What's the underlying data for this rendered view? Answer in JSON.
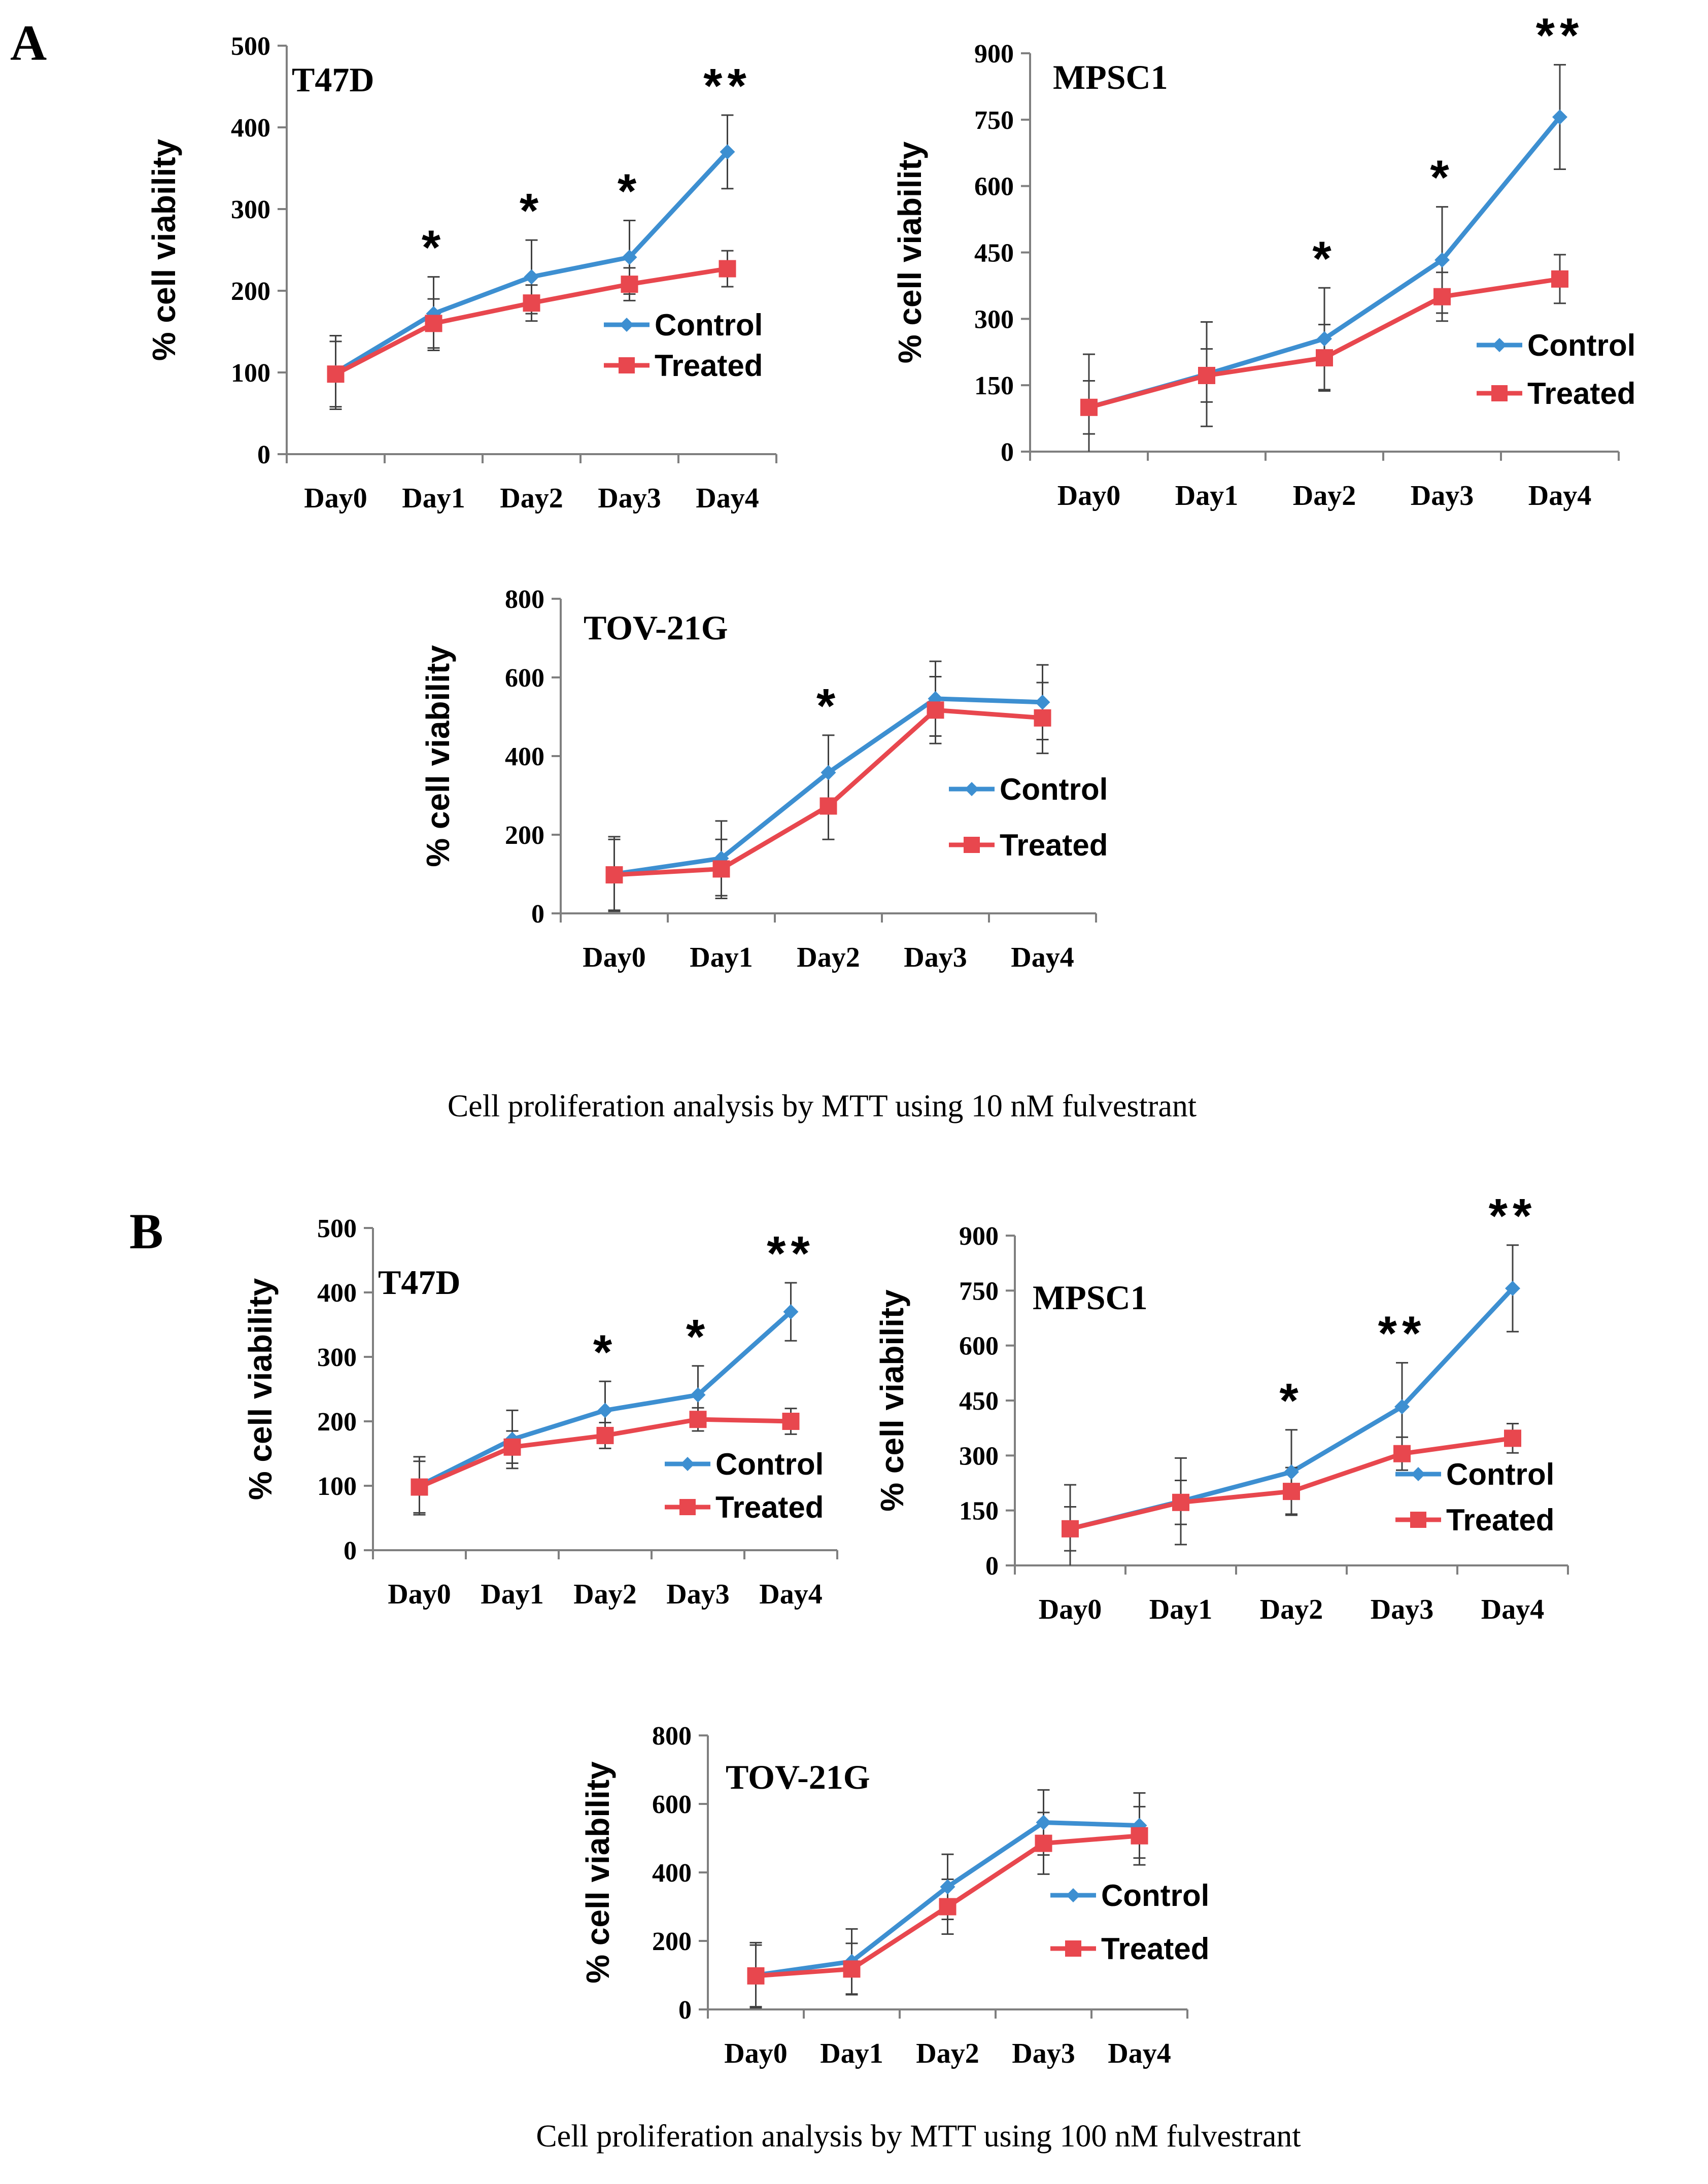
{
  "panels": [
    {
      "letter": "A",
      "caption": "Cell proliferation analysis by MTT using 10 nM fulvestrant"
    },
    {
      "letter": "B",
      "caption": "Cell proliferation analysis by MTT using 100 nM fulvestrant"
    }
  ],
  "colors": {
    "control": "#3d8fd1",
    "treated": "#e8474e",
    "axis": "#7f7f7f",
    "errorbar": "#404040"
  },
  "chart_data": [
    {
      "type": "line",
      "panel": "A",
      "title": "T47D",
      "ylabel": "% cell viability",
      "xlabel": "",
      "categories": [
        "Day0",
        "Day1",
        "Day2",
        "Day3",
        "Day4"
      ],
      "ylim": [
        0,
        500
      ],
      "yticks": [
        0,
        100,
        200,
        300,
        400,
        500
      ],
      "series": [
        {
          "name": "Control",
          "values": [
            100,
            172,
            217,
            241,
            370
          ],
          "errors": [
            45,
            45,
            45,
            45,
            45
          ]
        },
        {
          "name": "Treated",
          "values": [
            98,
            160,
            185,
            208,
            227
          ],
          "errors": [
            40,
            30,
            22,
            20,
            22
          ]
        }
      ],
      "significance": [
        "",
        "*",
        "*",
        "*",
        "**"
      ],
      "legend": "right"
    },
    {
      "type": "line",
      "panel": "A",
      "title": "MPSC1",
      "ylabel": "% cell viability",
      "xlabel": "",
      "categories": [
        "Day0",
        "Day1",
        "Day2",
        "Day3",
        "Day4"
      ],
      "ylim": [
        0,
        900
      ],
      "yticks": [
        0,
        150,
        300,
        450,
        600,
        750,
        900
      ],
      "series": [
        {
          "name": "Control",
          "values": [
            100,
            175,
            255,
            433,
            756
          ],
          "errors": [
            120,
            118,
            115,
            120,
            118
          ]
        },
        {
          "name": "Treated",
          "values": [
            100,
            172,
            212,
            350,
            390
          ],
          "errors": [
            60,
            60,
            75,
            55,
            55
          ]
        }
      ],
      "significance": [
        "",
        "",
        "*",
        "*",
        "**"
      ],
      "legend": "right"
    },
    {
      "type": "line",
      "panel": "A",
      "title": "TOV-21G",
      "ylabel": "% cell viability",
      "xlabel": "",
      "categories": [
        "Day0",
        "Day1",
        "Day2",
        "Day3",
        "Day4"
      ],
      "ylim": [
        0,
        800
      ],
      "yticks": [
        0,
        200,
        400,
        600,
        800
      ],
      "series": [
        {
          "name": "Control",
          "values": [
            100,
            140,
            358,
            546,
            537
          ],
          "errors": [
            95,
            95,
            95,
            95,
            95
          ]
        },
        {
          "name": "Treated",
          "values": [
            98,
            113,
            273,
            517,
            497
          ],
          "errors": [
            90,
            75,
            85,
            85,
            90
          ]
        }
      ],
      "significance": [
        "",
        "",
        "*",
        "",
        ""
      ],
      "legend": "right"
    },
    {
      "type": "line",
      "panel": "B",
      "title": "T47D",
      "ylabel": "% cell viability",
      "xlabel": "",
      "categories": [
        "Day0",
        "Day1",
        "Day2",
        "Day3",
        "Day4"
      ],
      "ylim": [
        0,
        500
      ],
      "yticks": [
        0,
        100,
        200,
        300,
        400,
        500
      ],
      "series": [
        {
          "name": "Control",
          "values": [
            100,
            172,
            217,
            241,
            370
          ],
          "errors": [
            45,
            45,
            45,
            45,
            45
          ]
        },
        {
          "name": "Treated",
          "values": [
            98,
            160,
            178,
            203,
            200
          ],
          "errors": [
            40,
            25,
            20,
            18,
            20
          ]
        }
      ],
      "significance": [
        "",
        "",
        "*",
        "*",
        "**"
      ],
      "legend": "right"
    },
    {
      "type": "line",
      "panel": "B",
      "title": "MPSC1",
      "ylabel": "% cell viability",
      "xlabel": "",
      "categories": [
        "Day0",
        "Day1",
        "Day2",
        "Day3",
        "Day4"
      ],
      "ylim": [
        0,
        900
      ],
      "yticks": [
        0,
        150,
        300,
        450,
        600,
        750,
        900
      ],
      "series": [
        {
          "name": "Control",
          "values": [
            100,
            175,
            255,
            433,
            756
          ],
          "errors": [
            120,
            118,
            115,
            120,
            118
          ]
        },
        {
          "name": "Treated",
          "values": [
            100,
            172,
            202,
            305,
            347
          ],
          "errors": [
            60,
            60,
            65,
            45,
            40
          ]
        }
      ],
      "significance": [
        "",
        "",
        "*",
        "**",
        "**"
      ],
      "legend": "right"
    },
    {
      "type": "line",
      "panel": "B",
      "title": "TOV-21G",
      "ylabel": "% cell viability",
      "xlabel": "",
      "categories": [
        "Day0",
        "Day1",
        "Day2",
        "Day3",
        "Day4"
      ],
      "ylim": [
        0,
        800
      ],
      "yticks": [
        0,
        200,
        400,
        600,
        800
      ],
      "series": [
        {
          "name": "Control",
          "values": [
            100,
            140,
            358,
            546,
            537
          ],
          "errors": [
            95,
            95,
            95,
            95,
            95
          ]
        },
        {
          "name": "Treated",
          "values": [
            98,
            118,
            300,
            485,
            507
          ],
          "errors": [
            90,
            75,
            80,
            90,
            85
          ]
        }
      ],
      "significance": [
        "",
        "",
        "",
        "",
        ""
      ],
      "legend": "right"
    }
  ]
}
